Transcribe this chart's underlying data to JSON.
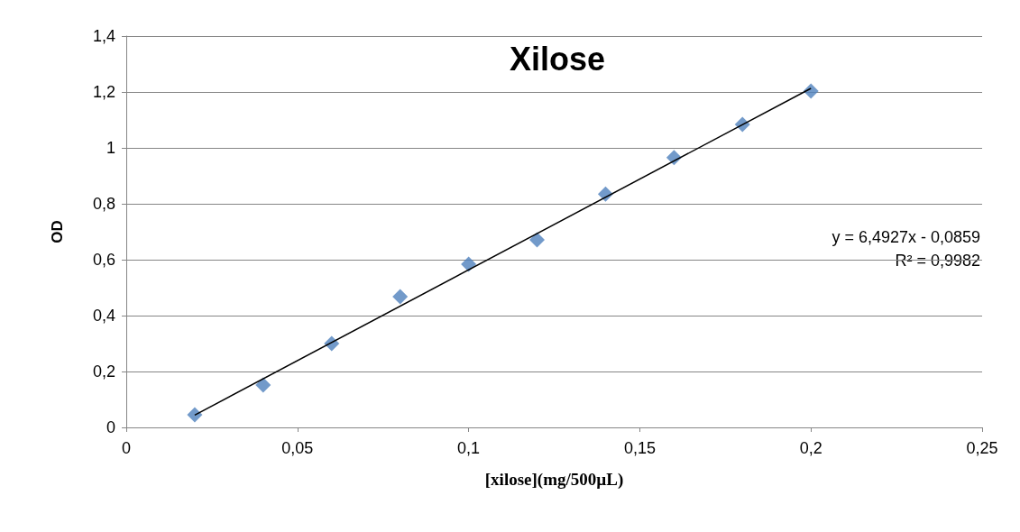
{
  "chart_data": {
    "type": "scatter",
    "title": "Xilose",
    "xlabel": "[xilose](mg/500µL)",
    "ylabel": "OD",
    "xlim": [
      0,
      0.25
    ],
    "xticks": [
      0,
      {
        "value": 0.05,
        "label": "0,05"
      },
      {
        "value": 0.1,
        "label": "0,1"
      },
      {
        "value": 0.15,
        "label": "0,15"
      },
      {
        "value": 0.2,
        "label": "0,2"
      },
      {
        "value": 0.25,
        "label": "0,25"
      }
    ],
    "ylim": [
      0,
      1.4
    ],
    "yticks": [
      0,
      {
        "value": 0.2,
        "label": "0,2"
      },
      {
        "value": 0.4,
        "label": "0,4"
      },
      {
        "value": 0.6,
        "label": "0,6"
      },
      {
        "value": 0.8,
        "label": "0,8"
      },
      1,
      {
        "value": 1.2,
        "label": "1,2"
      },
      {
        "value": 1.4,
        "label": "1,4"
      }
    ],
    "grid": "y",
    "x": [
      0.02,
      0.04,
      0.06,
      0.08,
      0.1,
      0.12,
      0.14,
      0.16,
      0.18,
      0.2
    ],
    "series": [
      {
        "marker": "diamond",
        "color": "#4f81bd",
        "values": [
          0.045,
          0.152,
          0.3,
          0.468,
          0.584,
          0.671,
          0.835,
          0.965,
          1.084,
          1.203
        ]
      },
      {
        "type": "line",
        "marker": "none",
        "color": "#000000",
        "x": [
          0.02,
          0.2
        ],
        "values": [
          0.044,
          1.213
        ],
        "line_style": "solid"
      }
    ],
    "annotations": [
      "y = 6,4927x - 0,0859",
      "R² = 0,9982"
    ]
  }
}
